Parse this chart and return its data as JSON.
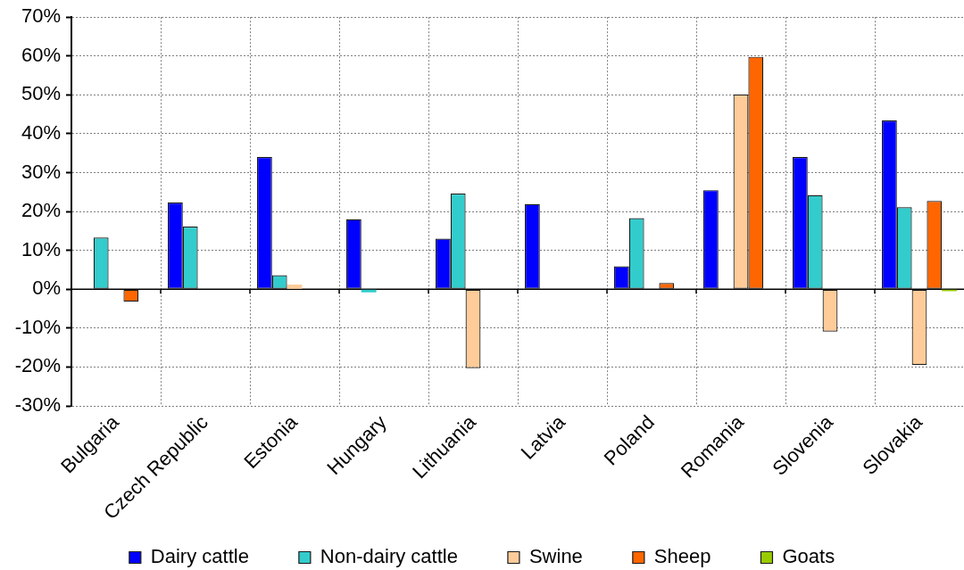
{
  "chart_data": {
    "type": "bar",
    "categories": [
      "Bulgaria",
      "Czech Republic",
      "Estonia",
      "Hungary",
      "Lithuania",
      "Latvia",
      "Poland",
      "Romania",
      "Slovenia",
      "Slovakia"
    ],
    "series": [
      {
        "name": "Dairy cattle",
        "color": "#0000ff",
        "values": [
          null,
          22.3,
          34.0,
          18.0,
          13.0,
          21.9,
          5.9,
          25.5,
          34.0,
          43.4
        ]
      },
      {
        "name": "Non-dairy cattle",
        "color": "#33cccc",
        "values": [
          13.3,
          16.1,
          3.6,
          -0.8,
          24.6,
          null,
          18.3,
          null,
          24.2,
          21.1
        ]
      },
      {
        "name": "Swine",
        "color": "#ffcc99",
        "values": [
          null,
          null,
          1.2,
          null,
          -20.3,
          null,
          null,
          50.1,
          -10.9,
          -19.5
        ]
      },
      {
        "name": "Sheep",
        "color": "#ff6600",
        "values": [
          -3.2,
          null,
          null,
          null,
          null,
          null,
          1.6,
          59.8,
          null,
          22.7
        ]
      },
      {
        "name": "Goats",
        "color": "#99cc00",
        "values": [
          null,
          null,
          null,
          null,
          null,
          null,
          null,
          null,
          null,
          -0.5
        ]
      }
    ],
    "ylim": [
      -30,
      70
    ],
    "yticks": [
      {
        "value": -30,
        "label": "-30%"
      },
      {
        "value": -20,
        "label": "-20%"
      },
      {
        "value": -10,
        "label": "-10%"
      },
      {
        "value": 0,
        "label": "0%"
      },
      {
        "value": 10,
        "label": "10%"
      },
      {
        "value": 20,
        "label": "20%"
      },
      {
        "value": 30,
        "label": "30%"
      },
      {
        "value": 40,
        "label": "40%"
      },
      {
        "value": 50,
        "label": "50%"
      },
      {
        "value": 60,
        "label": "60%"
      },
      {
        "value": 70,
        "label": "70%"
      }
    ],
    "grid": true,
    "legend": "bottom"
  }
}
